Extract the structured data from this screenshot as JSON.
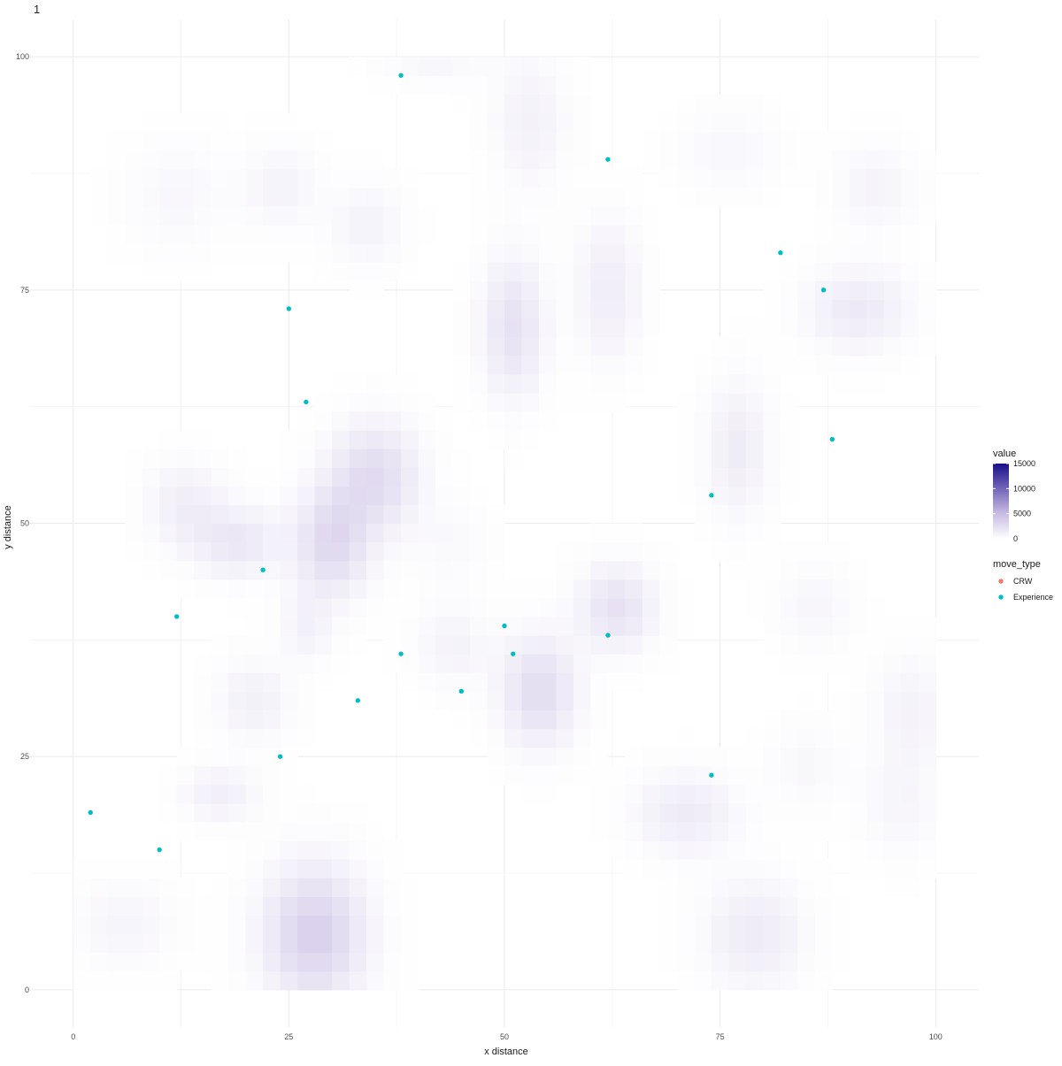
{
  "panel_label": "1",
  "chart_data": {
    "type": "heatmap",
    "title": "",
    "xlabel": "x distance",
    "ylabel": "y distance",
    "xlim": [
      -5,
      105
    ],
    "ylim": [
      -4,
      104
    ],
    "x_ticks": [
      0,
      25,
      50,
      75,
      100
    ],
    "y_ticks": [
      0,
      25,
      50,
      75,
      100
    ],
    "x_tick_labels": [
      "0",
      "25",
      "50",
      "75",
      "100"
    ],
    "y_tick_labels": [
      "0",
      "25",
      "50",
      "75",
      "100"
    ],
    "grid": true,
    "heatmap": {
      "x_range": [
        0,
        100
      ],
      "y_range": [
        0,
        100
      ],
      "value_range": [
        0,
        15000
      ],
      "low_color": "#ffffff",
      "high_color": "#1a0f8a",
      "hotspots": [
        {
          "x": 28,
          "y": 6,
          "value": 3400,
          "sx": 4,
          "sy": 5
        },
        {
          "x": 30,
          "y": 48,
          "value": 2800,
          "sx": 3,
          "sy": 4
        },
        {
          "x": 35,
          "y": 55,
          "value": 2600,
          "sx": 3.5,
          "sy": 4
        },
        {
          "x": 54,
          "y": 32,
          "value": 2600,
          "sx": 3,
          "sy": 4
        },
        {
          "x": 51,
          "y": 71,
          "value": 2200,
          "sx": 2.5,
          "sy": 5
        },
        {
          "x": 63,
          "y": 41,
          "value": 2200,
          "sx": 3,
          "sy": 3
        },
        {
          "x": 19,
          "y": 48,
          "value": 1800,
          "sx": 3.5,
          "sy": 2.5
        },
        {
          "x": 91,
          "y": 73,
          "value": 1600,
          "sx": 4,
          "sy": 3
        },
        {
          "x": 79,
          "y": 6,
          "value": 1500,
          "sx": 4,
          "sy": 4
        },
        {
          "x": 71,
          "y": 19,
          "value": 1500,
          "sx": 4,
          "sy": 3
        },
        {
          "x": 77,
          "y": 58,
          "value": 1400,
          "sx": 2.5,
          "sy": 5
        },
        {
          "x": 62,
          "y": 75,
          "value": 1400,
          "sx": 2.5,
          "sy": 5
        },
        {
          "x": 13,
          "y": 52,
          "value": 1300,
          "sx": 3,
          "sy": 3
        },
        {
          "x": 17,
          "y": 21,
          "value": 1200,
          "sx": 3,
          "sy": 2
        },
        {
          "x": 21,
          "y": 31,
          "value": 1100,
          "sx": 3,
          "sy": 3
        },
        {
          "x": 27,
          "y": 39,
          "value": 1000,
          "sx": 2,
          "sy": 2.5
        },
        {
          "x": 53,
          "y": 93,
          "value": 1000,
          "sx": 3,
          "sy": 5
        },
        {
          "x": 24,
          "y": 86,
          "value": 900,
          "sx": 3,
          "sy": 3
        },
        {
          "x": 34,
          "y": 82,
          "value": 900,
          "sx": 3,
          "sy": 3
        },
        {
          "x": 93,
          "y": 86,
          "value": 900,
          "sx": 3,
          "sy": 3
        },
        {
          "x": 97,
          "y": 30,
          "value": 900,
          "sx": 3,
          "sy": 4
        },
        {
          "x": 44,
          "y": 37,
          "value": 900,
          "sx": 3,
          "sy": 3
        },
        {
          "x": 6,
          "y": 7,
          "value": 800,
          "sx": 4,
          "sy": 3
        },
        {
          "x": 86,
          "y": 41,
          "value": 700,
          "sx": 3,
          "sy": 3
        },
        {
          "x": 96,
          "y": 20,
          "value": 700,
          "sx": 3,
          "sy": 4
        },
        {
          "x": 85,
          "y": 24,
          "value": 600,
          "sx": 3,
          "sy": 3
        },
        {
          "x": 12,
          "y": 85,
          "value": 600,
          "sx": 4,
          "sy": 4
        },
        {
          "x": 76,
          "y": 90,
          "value": 600,
          "sx": 4,
          "sy": 3
        },
        {
          "x": 44,
          "y": 48,
          "value": 500,
          "sx": 3,
          "sy": 3
        },
        {
          "x": 42,
          "y": 100,
          "value": 700,
          "sx": 4,
          "sy": 2
        }
      ]
    },
    "points": [
      {
        "x": 38,
        "y": 98,
        "move_type": "Experience"
      },
      {
        "x": 62,
        "y": 89,
        "move_type": "Experience"
      },
      {
        "x": 82,
        "y": 79,
        "move_type": "Experience"
      },
      {
        "x": 87,
        "y": 75,
        "move_type": "Experience"
      },
      {
        "x": 25,
        "y": 73,
        "move_type": "Experience"
      },
      {
        "x": 27,
        "y": 63,
        "move_type": "Experience"
      },
      {
        "x": 88,
        "y": 59,
        "move_type": "Experience"
      },
      {
        "x": 74,
        "y": 53,
        "move_type": "Experience"
      },
      {
        "x": 22,
        "y": 45,
        "move_type": "Experience"
      },
      {
        "x": 12,
        "y": 40,
        "move_type": "Experience"
      },
      {
        "x": 50,
        "y": 39,
        "move_type": "Experience"
      },
      {
        "x": 62,
        "y": 38,
        "move_type": "Experience"
      },
      {
        "x": 38,
        "y": 36,
        "move_type": "Experience"
      },
      {
        "x": 51,
        "y": 36,
        "move_type": "Experience"
      },
      {
        "x": 45,
        "y": 32,
        "move_type": "Experience"
      },
      {
        "x": 33,
        "y": 31,
        "move_type": "Experience"
      },
      {
        "x": 24,
        "y": 25,
        "move_type": "Experience"
      },
      {
        "x": 74,
        "y": 23,
        "move_type": "Experience"
      },
      {
        "x": 2,
        "y": 19,
        "move_type": "Experience"
      },
      {
        "x": 10,
        "y": 15,
        "move_type": "Experience"
      }
    ],
    "legend": {
      "placement": "right",
      "fill_title": "value",
      "fill_breaks": [
        "15000",
        "10000",
        "5000",
        "0"
      ],
      "color_title": "move_type",
      "color_entries": [
        {
          "label": "CRW",
          "color": "#f8766d"
        },
        {
          "label": "Experience",
          "color": "#00bfc4"
        }
      ]
    }
  }
}
